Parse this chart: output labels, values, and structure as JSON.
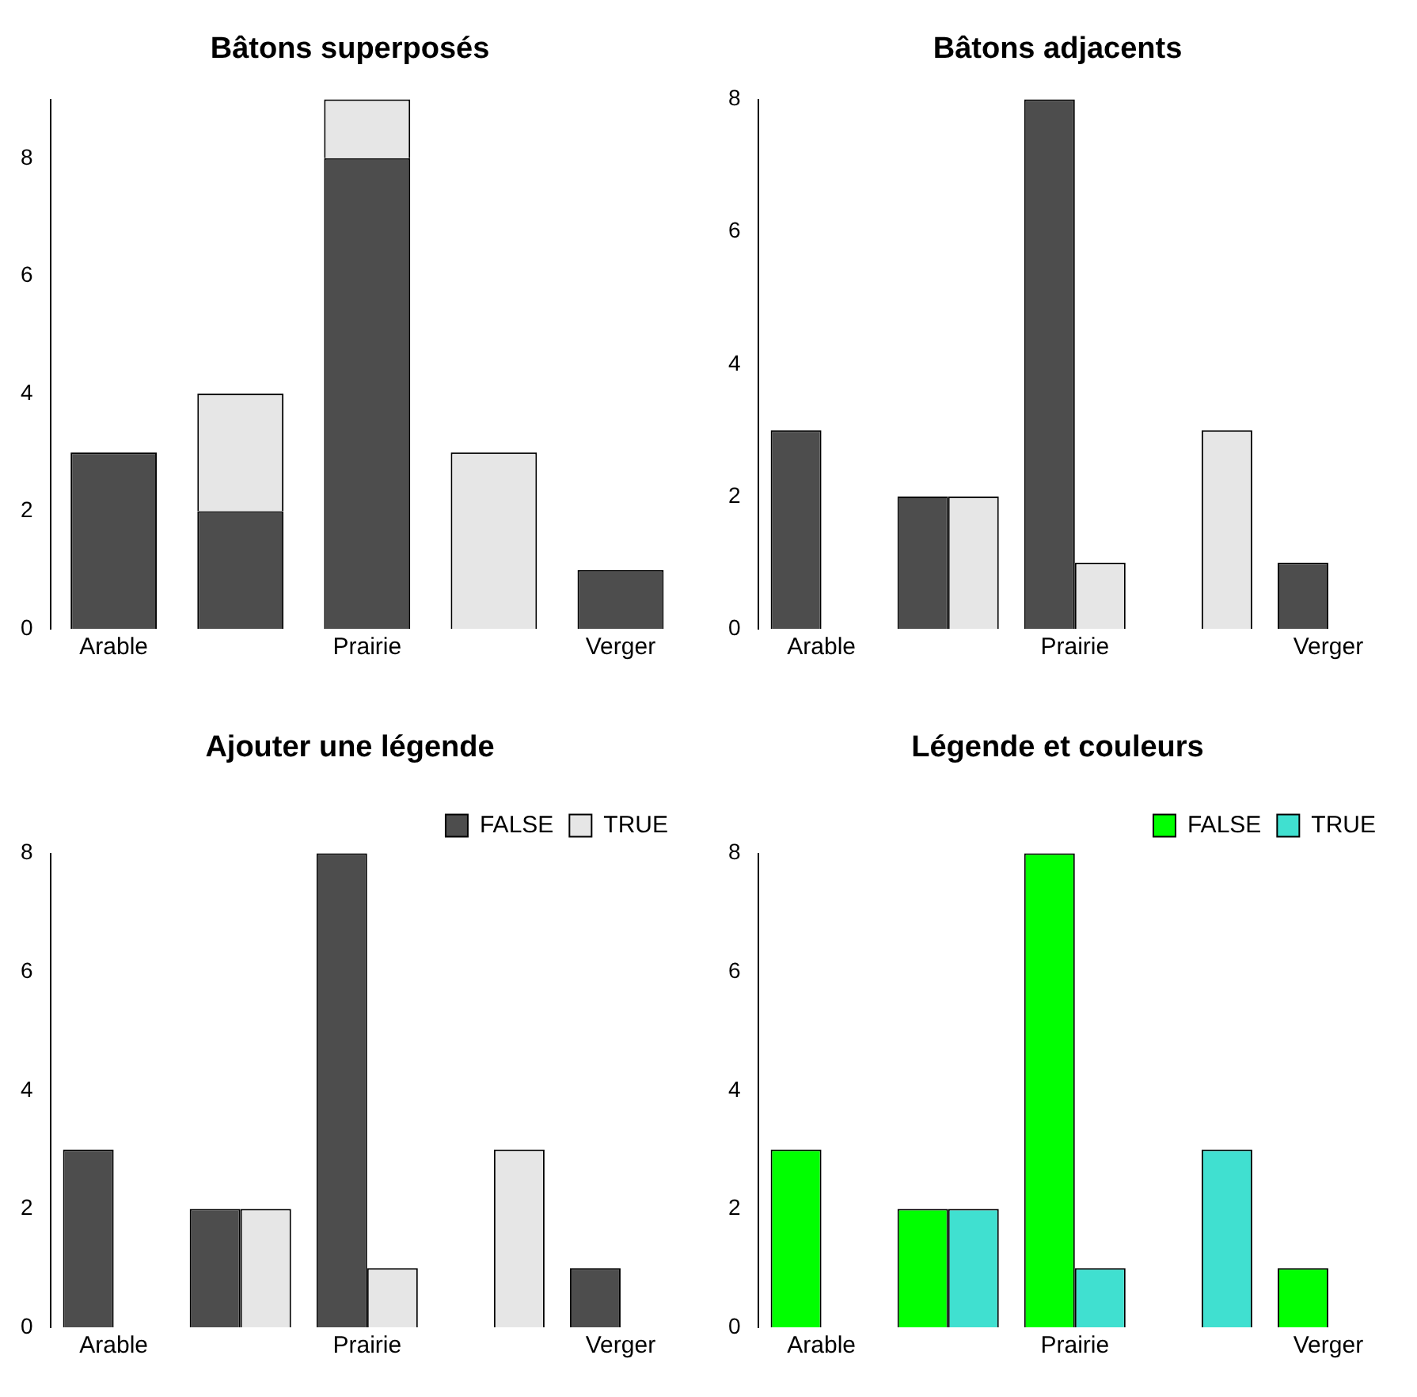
{
  "chart_data": [
    {
      "type": "bar",
      "title": "Bâtons superposés",
      "categories": [
        "Arable",
        null,
        "Prairie",
        null,
        "Verger"
      ],
      "stacked": true,
      "ylim": [
        0,
        9
      ],
      "yticks": [
        0,
        2,
        4,
        6,
        8
      ],
      "series": [
        {
          "color": "#4d4d4d",
          "values": [
            3,
            2,
            8,
            0,
            1
          ]
        },
        {
          "color": "#e6e6e6",
          "values": [
            0,
            2,
            1,
            3,
            0
          ]
        }
      ]
    },
    {
      "type": "bar",
      "title": "Bâtons adjacents",
      "categories": [
        "Arable",
        null,
        "Prairie",
        null,
        "Verger"
      ],
      "ylim": [
        0,
        8
      ],
      "yticks": [
        0,
        2,
        4,
        6,
        8
      ],
      "series": [
        {
          "color": "#4d4d4d",
          "values": [
            3,
            2,
            8,
            0,
            1
          ]
        },
        {
          "color": "#e6e6e6",
          "values": [
            0,
            2,
            1,
            3,
            0
          ]
        }
      ]
    },
    {
      "type": "bar",
      "title": "Ajouter une légende",
      "categories": [
        "Arable",
        null,
        "Prairie",
        null,
        "Verger"
      ],
      "ylim": [
        0,
        8
      ],
      "yticks": [
        0,
        2,
        4,
        6,
        8
      ],
      "legend": "top right",
      "series": [
        {
          "name": "FALSE",
          "color": "#4d4d4d",
          "values": [
            3,
            2,
            8,
            0,
            1
          ]
        },
        {
          "name": "TRUE",
          "color": "#e6e6e6",
          "values": [
            0,
            2,
            1,
            3,
            0
          ]
        }
      ]
    },
    {
      "type": "bar",
      "title": "Légende et couleurs",
      "categories": [
        "Arable",
        null,
        "Prairie",
        null,
        "Verger"
      ],
      "ylim": [
        0,
        8
      ],
      "yticks": [
        0,
        2,
        4,
        6,
        8
      ],
      "legend": "top right",
      "series": [
        {
          "name": "FALSE",
          "color": "#00ff00",
          "values": [
            3,
            2,
            8,
            0,
            1
          ]
        },
        {
          "name": "TRUE",
          "color": "#40e0d0",
          "values": [
            0,
            2,
            1,
            3,
            0
          ]
        }
      ]
    }
  ]
}
